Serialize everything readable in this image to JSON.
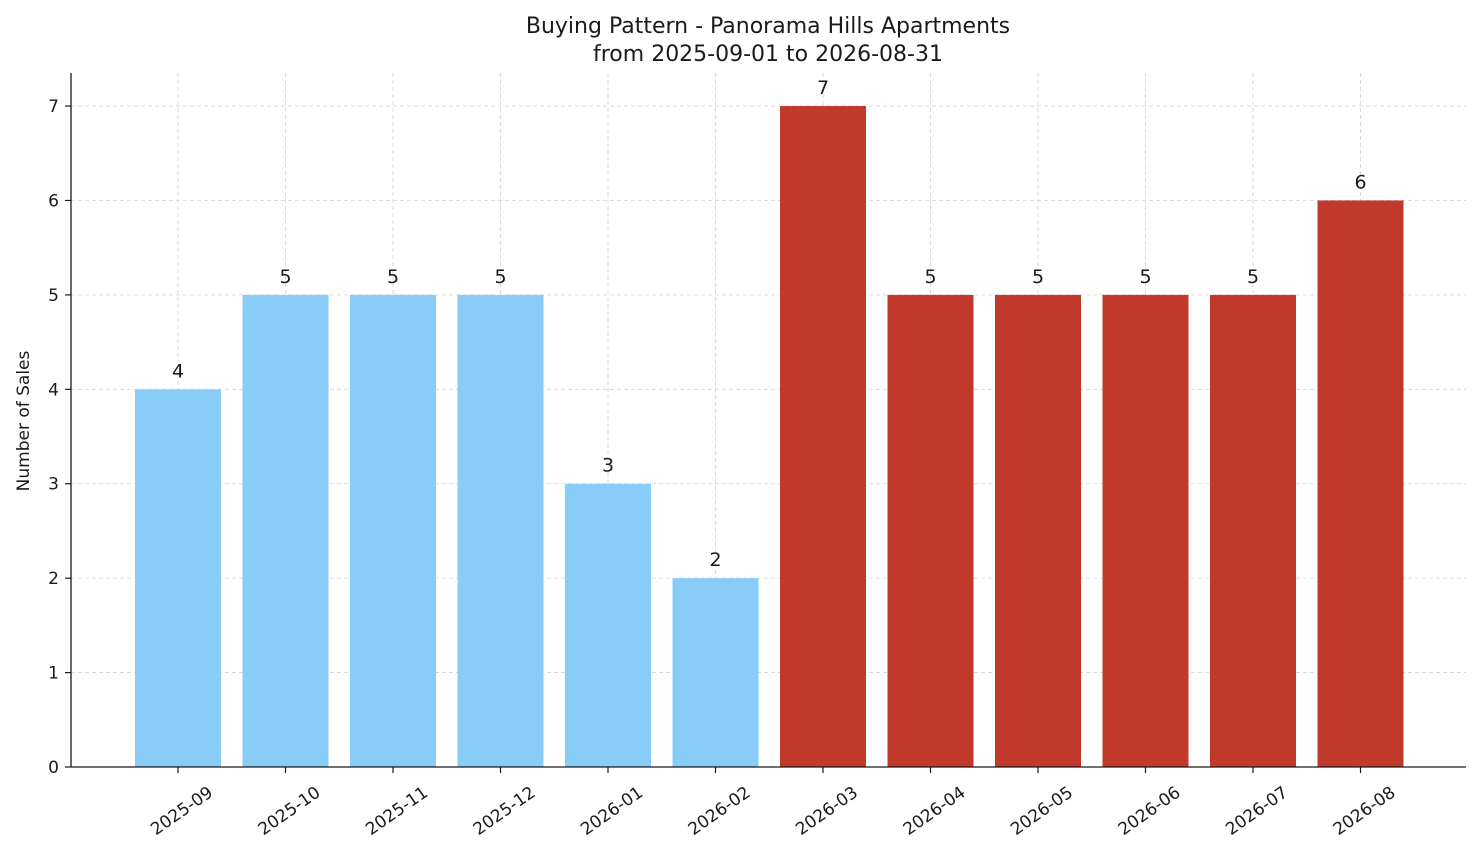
{
  "chart_data": {
    "type": "bar",
    "title": "Buying Pattern - Panorama Hills Apartments",
    "subtitle": "from 2025-09-01 to 2026-08-31",
    "xlabel": "",
    "ylabel": "Number of Sales",
    "ylim": [
      0,
      7.35
    ],
    "yticks": [
      0,
      1,
      2,
      3,
      4,
      5,
      6,
      7
    ],
    "grid": true,
    "categories": [
      "2025-09",
      "2025-10",
      "2025-11",
      "2025-12",
      "2026-01",
      "2026-02",
      "2026-03",
      "2026-04",
      "2026-05",
      "2026-06",
      "2026-07",
      "2026-08"
    ],
    "values": [
      4,
      5,
      5,
      5,
      3,
      2,
      7,
      5,
      5,
      5,
      5,
      6
    ],
    "bar_colors": [
      "#87cdf7",
      "#87cdf7",
      "#87cdf7",
      "#87cdf7",
      "#87cdf7",
      "#87cdf7",
      "#c0392b",
      "#c0392b",
      "#c0392b",
      "#c0392b",
      "#c0392b",
      "#c0392b"
    ],
    "data_labels": true
  }
}
